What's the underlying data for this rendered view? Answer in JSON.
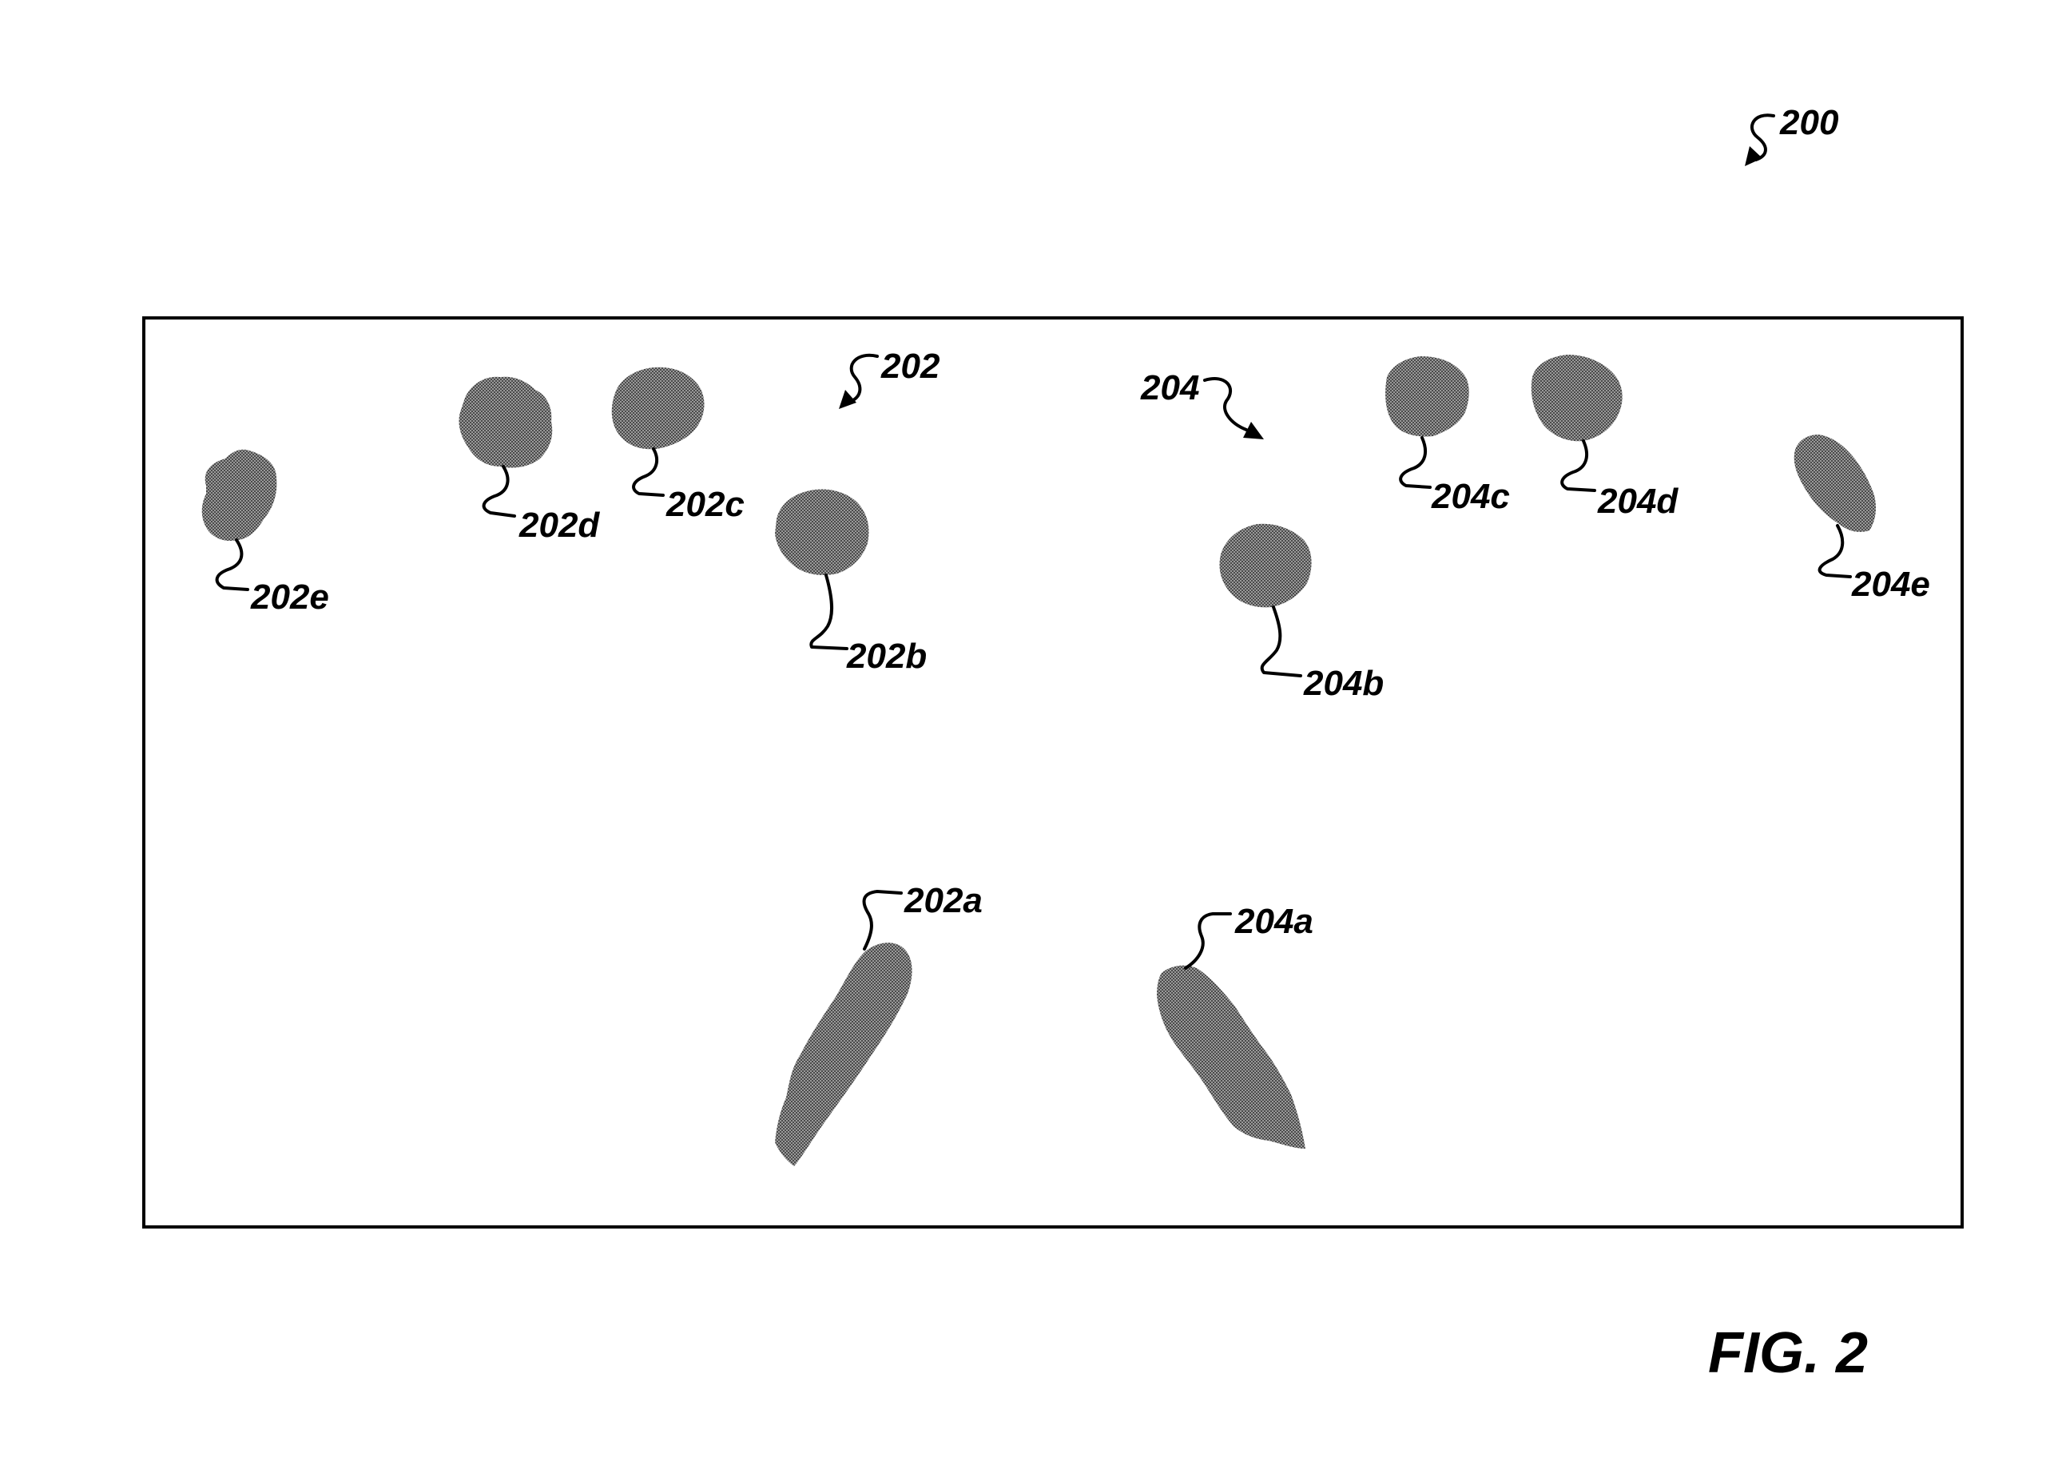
{
  "figure": {
    "number_label": "200",
    "caption": "FIG. 2",
    "group_labels": {
      "group_202": "202",
      "group_204": "204"
    },
    "element_labels": {
      "e202a": "202a",
      "e202b": "202b",
      "e202c": "202c",
      "e202d": "202d",
      "e202e": "202e",
      "e204a": "204a",
      "e204b": "204b",
      "e204c": "204c",
      "e204d": "204d",
      "e204e": "204e"
    },
    "colors": {
      "ink": "#000000",
      "blob_fill": "#7f7f7f",
      "background": "#ffffff"
    }
  }
}
